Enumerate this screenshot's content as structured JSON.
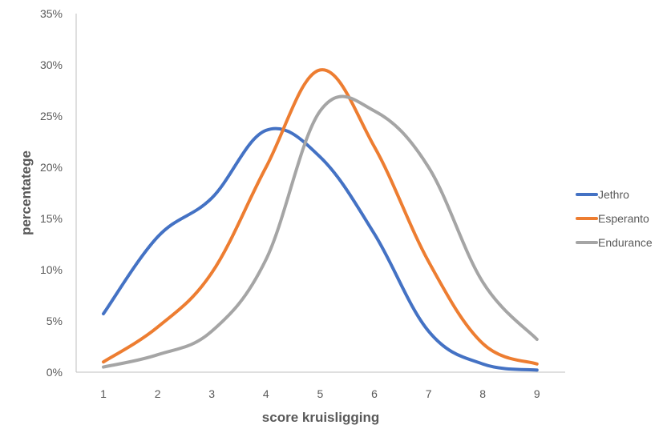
{
  "chart_data": {
    "type": "line",
    "title": "",
    "xlabel": "score kruisligging",
    "ylabel": "percentatege",
    "categories": [
      "1",
      "2",
      "3",
      "4",
      "5",
      "6",
      "7",
      "8",
      "9"
    ],
    "ylim": [
      0,
      0.35
    ],
    "yticks": [
      {
        "value": 0,
        "label": "0%"
      },
      {
        "value": 0.05,
        "label": "5%"
      },
      {
        "value": 0.1,
        "label": "10%"
      },
      {
        "value": 0.15,
        "label": "15%"
      },
      {
        "value": 0.2,
        "label": "20%"
      },
      {
        "value": 0.25,
        "label": "25%"
      },
      {
        "value": 0.3,
        "label": "30%"
      },
      {
        "value": 0.35,
        "label": "35%"
      }
    ],
    "grid": false,
    "legend_position": "right",
    "series": [
      {
        "name": "Jethro",
        "color": "#4472C4",
        "values": [
          0.057,
          0.132,
          0.17,
          0.236,
          0.21,
          0.135,
          0.04,
          0.008,
          0.002
        ]
      },
      {
        "name": "Esperanto",
        "color": "#ED7D31",
        "values": [
          0.01,
          0.044,
          0.097,
          0.2,
          0.295,
          0.22,
          0.108,
          0.028,
          0.008
        ]
      },
      {
        "name": "Endurance",
        "color": "#A5A5A5",
        "values": [
          0.005,
          0.017,
          0.04,
          0.11,
          0.255,
          0.255,
          0.2,
          0.088,
          0.032
        ]
      }
    ]
  }
}
